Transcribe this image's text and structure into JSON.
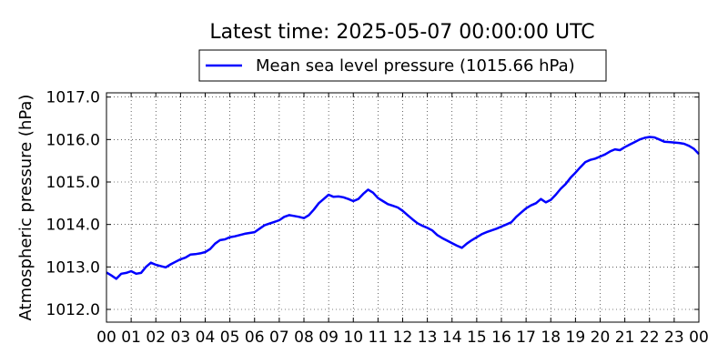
{
  "chart_data": {
    "type": "line",
    "title": "Latest time: 2025-05-07 00:00:00 UTC",
    "xlabel": "",
    "ylabel": "Atmospheric pressure (hPa)",
    "xlim": [
      0,
      24
    ],
    "ylim": [
      1011.7,
      1017.1
    ],
    "grid": true,
    "legend_position": "top-center",
    "x_ticks": [
      0,
      1,
      2,
      3,
      4,
      5,
      6,
      7,
      8,
      9,
      10,
      11,
      12,
      13,
      14,
      15,
      16,
      17,
      18,
      19,
      20,
      21,
      22,
      23,
      24
    ],
    "x_tick_labels": [
      "00",
      "01",
      "02",
      "03",
      "04",
      "05",
      "06",
      "07",
      "08",
      "09",
      "10",
      "11",
      "12",
      "13",
      "14",
      "15",
      "16",
      "17",
      "18",
      "19",
      "20",
      "21",
      "22",
      "23",
      "00"
    ],
    "y_ticks": [
      1012.0,
      1013.0,
      1014.0,
      1015.0,
      1016.0,
      1017.0
    ],
    "y_tick_labels": [
      "1012.0",
      "1013.0",
      "1014.0",
      "1015.0",
      "1016.0",
      "1017.0"
    ],
    "series": [
      {
        "name": "Mean sea level pressure (1015.66 hPa)",
        "color": "#0000ff",
        "x": [
          0.0,
          0.2,
          0.4,
          0.6,
          0.8,
          1.0,
          1.2,
          1.4,
          1.6,
          1.8,
          2.0,
          2.2,
          2.4,
          2.6,
          2.8,
          3.0,
          3.2,
          3.4,
          3.6,
          3.8,
          4.0,
          4.2,
          4.4,
          4.6,
          4.8,
          5.0,
          5.2,
          5.4,
          5.6,
          5.8,
          6.0,
          6.2,
          6.4,
          6.6,
          6.8,
          7.0,
          7.2,
          7.4,
          7.6,
          7.8,
          8.0,
          8.2,
          8.4,
          8.6,
          8.8,
          9.0,
          9.2,
          9.4,
          9.6,
          9.8,
          10.0,
          10.2,
          10.4,
          10.6,
          10.8,
          11.0,
          11.2,
          11.4,
          11.6,
          11.8,
          12.0,
          12.2,
          12.4,
          12.6,
          12.8,
          13.0,
          13.2,
          13.4,
          13.6,
          13.8,
          14.0,
          14.2,
          14.4,
          14.6,
          14.8,
          15.0,
          15.2,
          15.4,
          15.6,
          15.8,
          16.0,
          16.2,
          16.4,
          16.6,
          16.8,
          17.0,
          17.2,
          17.4,
          17.6,
          17.8,
          18.0,
          18.2,
          18.4,
          18.6,
          18.8,
          19.0,
          19.2,
          19.4,
          19.6,
          19.8,
          20.0,
          20.2,
          20.4,
          20.6,
          20.8,
          21.0,
          21.2,
          21.4,
          21.6,
          21.8,
          22.0,
          22.2,
          22.4,
          22.6,
          22.8,
          23.0,
          23.2,
          23.4,
          23.6,
          23.8,
          24.0
        ],
        "values": [
          1012.87,
          1012.8,
          1012.72,
          1012.84,
          1012.86,
          1012.9,
          1012.84,
          1012.86,
          1013.0,
          1013.1,
          1013.05,
          1013.02,
          1012.99,
          1013.06,
          1013.12,
          1013.18,
          1013.22,
          1013.29,
          1013.3,
          1013.32,
          1013.35,
          1013.42,
          1013.55,
          1013.63,
          1013.65,
          1013.7,
          1013.72,
          1013.75,
          1013.78,
          1013.8,
          1013.82,
          1013.9,
          1013.98,
          1014.02,
          1014.06,
          1014.1,
          1014.18,
          1014.22,
          1014.2,
          1014.18,
          1014.15,
          1014.22,
          1014.35,
          1014.5,
          1014.6,
          1014.7,
          1014.65,
          1014.66,
          1014.64,
          1014.6,
          1014.55,
          1014.6,
          1014.72,
          1014.82,
          1014.75,
          1014.62,
          1014.55,
          1014.48,
          1014.44,
          1014.4,
          1014.32,
          1014.22,
          1014.12,
          1014.03,
          1013.97,
          1013.92,
          1013.86,
          1013.75,
          1013.68,
          1013.62,
          1013.56,
          1013.5,
          1013.45,
          1013.55,
          1013.63,
          1013.7,
          1013.77,
          1013.82,
          1013.86,
          1013.9,
          1013.95,
          1014.0,
          1014.05,
          1014.18,
          1014.28,
          1014.38,
          1014.45,
          1014.5,
          1014.6,
          1014.52,
          1014.58,
          1014.7,
          1014.84,
          1014.95,
          1015.1,
          1015.22,
          1015.35,
          1015.47,
          1015.52,
          1015.55,
          1015.6,
          1015.65,
          1015.72,
          1015.77,
          1015.75,
          1015.82,
          1015.88,
          1015.94,
          1016.0,
          1016.04,
          1016.06,
          1016.05,
          1016.0,
          1015.95,
          1015.94,
          1015.93,
          1015.92,
          1015.9,
          1015.85,
          1015.78,
          1015.66
        ]
      }
    ]
  }
}
